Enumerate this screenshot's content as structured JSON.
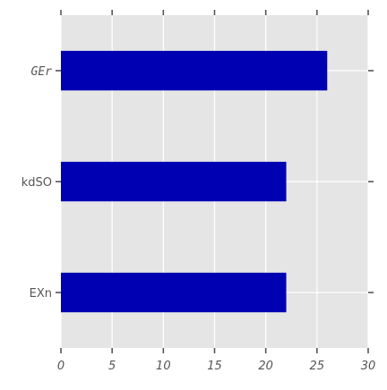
{
  "chart_data": {
    "type": "bar",
    "orientation": "horizontal",
    "categories": [
      "GEr",
      "kdSO",
      "EXn"
    ],
    "values": [
      26,
      22,
      22
    ],
    "title": "",
    "xlabel": "",
    "ylabel": "",
    "xlim": [
      0,
      30
    ],
    "xticks": [
      0,
      5,
      10,
      15,
      20,
      25,
      30
    ],
    "xtick_labels": [
      "0",
      "5",
      "10",
      "15",
      "20",
      "25",
      "30"
    ],
    "grid": true,
    "legend": "none",
    "colors": {
      "bar": "#0000b3",
      "background": "#e5e5e5",
      "grid": "#ffffff",
      "tick_text": "#555555",
      "tick_marks": "#555555"
    }
  }
}
